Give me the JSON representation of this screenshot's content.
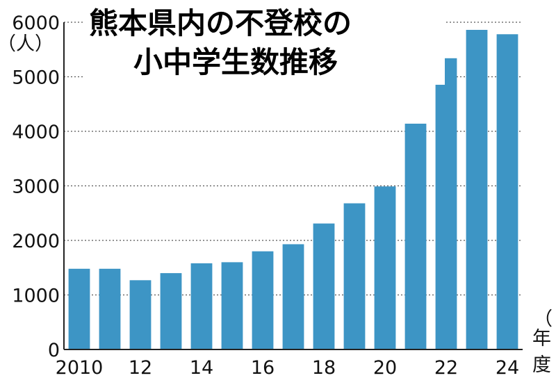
{
  "chart_data": {
    "type": "bar",
    "title": [
      "熊本県内の不登校の",
      "小中学生数推移"
    ],
    "y_unit": "（人）",
    "x_unit_chars": [
      "（",
      "年",
      "度"
    ],
    "x": [
      2010,
      2011,
      2012,
      2013,
      2014,
      2015,
      2016,
      2017,
      2018,
      2019,
      2020,
      2021,
      2022,
      2023,
      2024
    ],
    "x_tick_labels": [
      {
        "index": 0,
        "label": "2010"
      },
      {
        "index": 2,
        "label": "12"
      },
      {
        "index": 4,
        "label": "14"
      },
      {
        "index": 6,
        "label": "16"
      },
      {
        "index": 8,
        "label": "18"
      },
      {
        "index": 10,
        "label": "20"
      },
      {
        "index": 12,
        "label": "22"
      },
      {
        "index": 14,
        "label": "24"
      }
    ],
    "values": [
      1480,
      1480,
      1270,
      1400,
      1580,
      1600,
      1800,
      1930,
      2310,
      2680,
      2990,
      4140,
      5340,
      5860,
      5780
    ],
    "ylim": [
      0,
      6000
    ],
    "y_ticks": [
      0,
      1000,
      2000,
      3000,
      4000,
      5000,
      6000
    ],
    "grid": true,
    "colors": {
      "bar": "#3d95c5",
      "grid": "#555555",
      "axis": "#222222"
    }
  }
}
